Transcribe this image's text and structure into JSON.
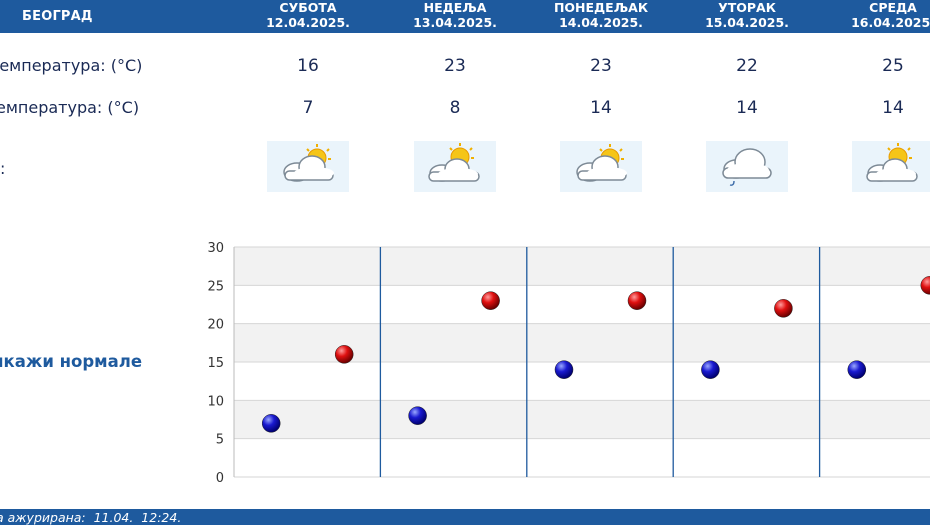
{
  "header": {
    "city": "БЕОГРАД",
    "days": [
      {
        "name": "СУБОТА",
        "date": "12.04.2025."
      },
      {
        "name": "НЕДЕЉА",
        "date": "13.04.2025."
      },
      {
        "name": "ПОНЕДЕЉАК",
        "date": "14.04.2025."
      },
      {
        "name": "УТОРАК",
        "date": "15.04.2025."
      },
      {
        "name": "СРЕДА",
        "date": "16.04.2025."
      }
    ]
  },
  "rows": {
    "max_label": "температура: (°C)",
    "min_label": "емпература: (°C)",
    "weather_label": ":",
    "max": [
      "16",
      "23",
      "23",
      "22",
      "25"
    ],
    "min": [
      "7",
      "8",
      "14",
      "14",
      "14"
    ],
    "weather_icons": [
      "partly-cloudy-icon",
      "partly-cloudy-icon",
      "partly-cloudy-icon",
      "cloud-drizzle-icon",
      "partly-cloudy-icon"
    ]
  },
  "toggle": {
    "label": "икажи нормале"
  },
  "chart_data": {
    "type": "scatter",
    "categories": [
      "12.04.2025.",
      "13.04.2025.",
      "14.04.2025.",
      "15.04.2025.",
      "16.04.2025."
    ],
    "ylim": [
      0,
      30
    ],
    "yticks": [
      "0",
      "5",
      "10",
      "15",
      "20",
      "25",
      "30"
    ],
    "series": [
      {
        "values": [
          7,
          8,
          14,
          14,
          14
        ],
        "color": "#1010b0"
      },
      {
        "values": [
          16,
          23,
          23,
          22,
          25
        ],
        "color": "#cc0000"
      }
    ],
    "grid": true,
    "legend": "none"
  },
  "footer": {
    "text": "а ажурирана:  11.04.  12:24."
  },
  "colors": {
    "header": "#1e5a9e",
    "band": "#f2f2f2",
    "divider": "#1e5a9e"
  }
}
